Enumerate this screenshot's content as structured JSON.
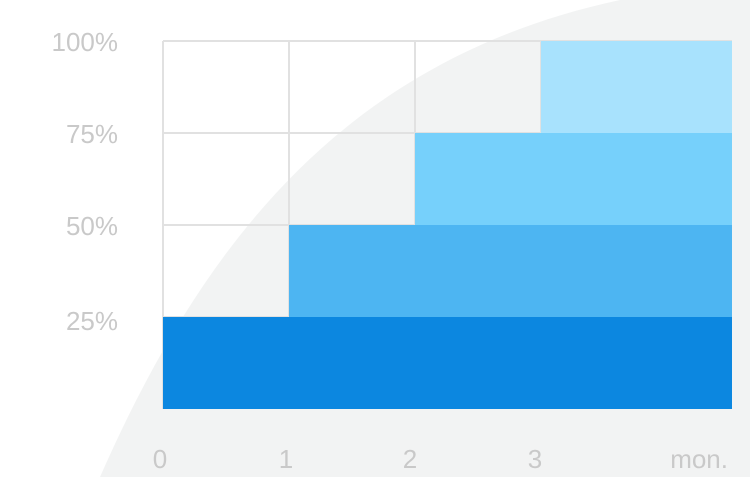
{
  "chart_data": {
    "type": "area",
    "x_tick_labels": [
      "0",
      "1",
      "2",
      "3"
    ],
    "x_unit_label": "mon.",
    "y_tick_labels": [
      "25%",
      "50%",
      "75%",
      "100%"
    ],
    "xlim": [
      0,
      4.5
    ],
    "ylim": [
      0,
      100
    ],
    "grid": true,
    "series": [
      {
        "x_start": 0,
        "y_low": 0,
        "y_high": 25,
        "color": "#0c87e0"
      },
      {
        "x_start": 1,
        "y_low": 25,
        "y_high": 50,
        "color": "#4db5f2"
      },
      {
        "x_start": 2,
        "y_low": 50,
        "y_high": 75,
        "color": "#76d0fb"
      },
      {
        "x_start": 3,
        "y_low": 75,
        "y_high": 100,
        "color": "#a8e2fd"
      }
    ]
  },
  "colors": {
    "background_arc": "#f2f3f3",
    "grid": "#e1e1e1",
    "tick_text": "#c9c9c9"
  }
}
